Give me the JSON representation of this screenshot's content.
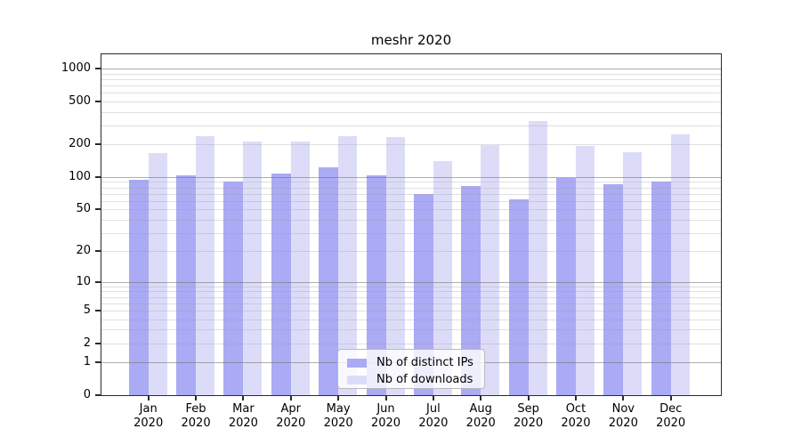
{
  "chart_data": {
    "type": "bar",
    "title": "meshr 2020",
    "year": "2020",
    "months": [
      "Jan",
      "Feb",
      "Mar",
      "Apr",
      "May",
      "Jun",
      "Jul",
      "Aug",
      "Sep",
      "Oct",
      "Nov",
      "Dec"
    ],
    "categories": [
      "Jan 2020",
      "Feb 2020",
      "Mar 2020",
      "Apr 2020",
      "May 2020",
      "Jun 2020",
      "Jul 2020",
      "Aug 2020",
      "Sep 2020",
      "Oct 2020",
      "Nov 2020",
      "Dec 2020"
    ],
    "series": [
      {
        "name": "Nb of distinct IPs",
        "color": "#aaaaf5",
        "values": [
          94,
          103,
          91,
          108,
          122,
          104,
          70,
          82,
          62,
          98,
          86,
          90
        ]
      },
      {
        "name": "Nb of downloads",
        "color": "#dcdcf9",
        "values": [
          167,
          240,
          212,
          211,
          240,
          235,
          141,
          199,
          330,
          194,
          170,
          247
        ]
      }
    ],
    "y_axis": {
      "scale": "log10(1+y)",
      "tick_values": [
        1000,
        500,
        200,
        100,
        50,
        20,
        10,
        5,
        2,
        1,
        0
      ],
      "major_gridlines": [
        1,
        10,
        100,
        1000
      ],
      "minor_gridlines": [
        2,
        3,
        4,
        5,
        6,
        7,
        8,
        9,
        20,
        30,
        40,
        50,
        60,
        70,
        80,
        90,
        200,
        300,
        400,
        500,
        600,
        700,
        800,
        900
      ],
      "ylim": [
        0,
        1380
      ]
    },
    "legend": {
      "entries": [
        "Nb of distinct IPs",
        "Nb of downloads"
      ],
      "location": "lower center"
    },
    "colors": {
      "minor_grid": "#e2e2e2",
      "major_grid": "#b0b0b0",
      "spine": "#2b2b2b",
      "text": "#000000"
    }
  }
}
